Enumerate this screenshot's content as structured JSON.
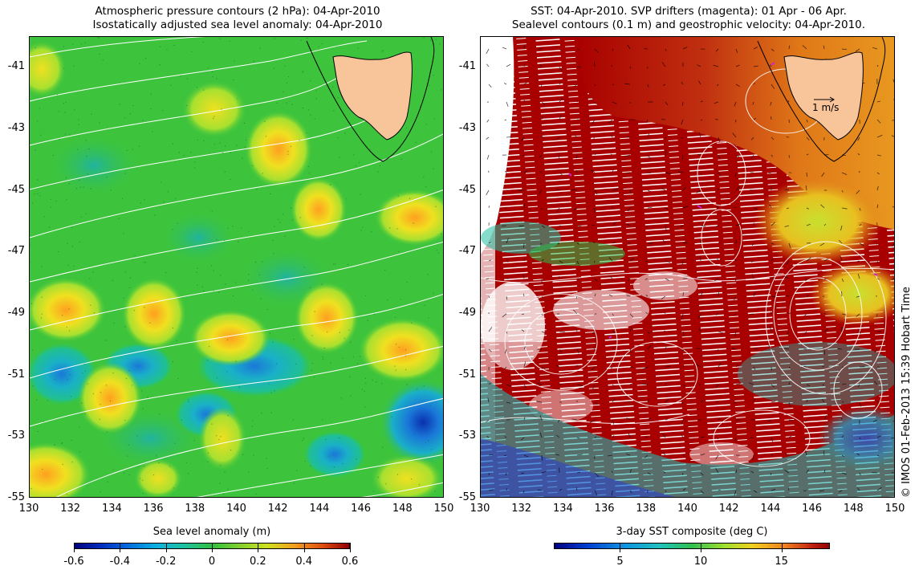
{
  "left_panel": {
    "title_line1": "Atmospheric pressure contours (2 hPa): 04-Apr-2010",
    "title_line2": "Isostatically adjusted sea level anomaly: 04-Apr-2010",
    "colorbar_label": "Sea level anomaly (m)",
    "colorbar_ticks": [
      "-0.6",
      "-0.4",
      "-0.2",
      "0",
      "0.2",
      "0.4",
      "0.6"
    ]
  },
  "right_panel": {
    "title_line1": "SST: 04-Apr-2010. SVP drifters (magenta): 01 Apr - 06 Apr.",
    "title_line2": "Sealevel contours (0.1 m) and geostrophic velocity: 04-Apr-2010.",
    "colorbar_label": "3-day SST composite (deg C)",
    "colorbar_ticks": [
      "5",
      "10",
      "15"
    ],
    "velocity_scale_label": "1 m/s"
  },
  "axes": {
    "lat_ticks": [
      "-41",
      "-43",
      "-45",
      "-47",
      "-49",
      "-51",
      "-53",
      "-55"
    ],
    "lon_ticks": [
      "130",
      "132",
      "134",
      "136",
      "138",
      "140",
      "142",
      "144",
      "146",
      "148",
      "150"
    ],
    "lon_range": [
      130,
      150
    ],
    "lat_range": [
      -55,
      -40
    ]
  },
  "credit": "© IMOS 01-Feb-2013 15:39 Hobart Time",
  "colors": {
    "land": "#f8c49a",
    "sla_background": "#38c43a",
    "sst_warm": "#a80000",
    "sst_orange": "#e8901a"
  },
  "icons": [
    "tasmania-land",
    "velocity-arrow-icon"
  ]
}
